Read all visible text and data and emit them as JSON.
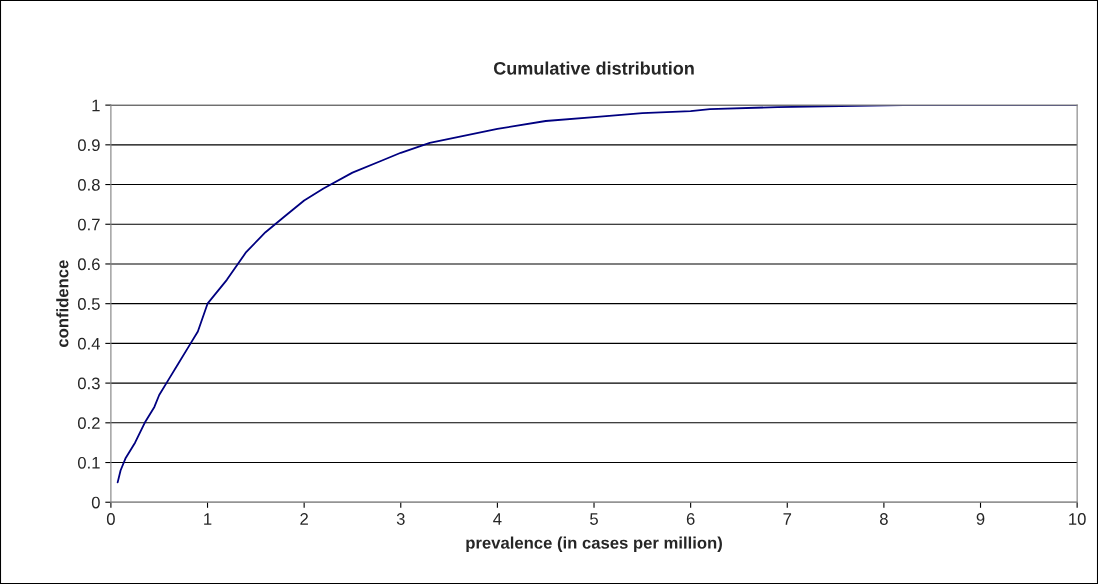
{
  "chart_data": {
    "type": "line",
    "title": "Cumulative distribution",
    "xlabel": "prevalence (in cases per million)",
    "ylabel": "confidence",
    "x": [
      0.07,
      0.1,
      0.15,
      0.25,
      0.35,
      0.45,
      0.5,
      0.6,
      0.7,
      0.8,
      0.9,
      1.0,
      1.2,
      1.4,
      1.6,
      1.8,
      2.0,
      2.2,
      2.5,
      2.8,
      3.0,
      3.3,
      3.6,
      4.0,
      4.5,
      5.0,
      5.5,
      6.0,
      6.2,
      6.9,
      8.2,
      10
    ],
    "series": [
      {
        "color": "#000080",
        "values": [
          0.05,
          0.08,
          0.11,
          0.15,
          0.2,
          0.24,
          0.27,
          0.31,
          0.35,
          0.39,
          0.43,
          0.5,
          0.56,
          0.63,
          0.68,
          0.72,
          0.76,
          0.79,
          0.83,
          0.86,
          0.88,
          0.905,
          0.92,
          0.94,
          0.96,
          0.97,
          0.98,
          0.985,
          0.99,
          0.995,
          1.0,
          1.0
        ]
      }
    ],
    "xlim": [
      0,
      10
    ],
    "xticks": [
      0,
      1,
      2,
      3,
      4,
      5,
      6,
      7,
      8,
      9,
      10
    ],
    "ylim": [
      0,
      1
    ],
    "yticks": [
      0,
      0.1,
      0.2,
      0.3,
      0.4,
      0.5,
      0.6,
      0.7,
      0.8,
      0.9,
      1
    ],
    "grid": "y",
    "marker": "none",
    "line_style": "solid"
  }
}
